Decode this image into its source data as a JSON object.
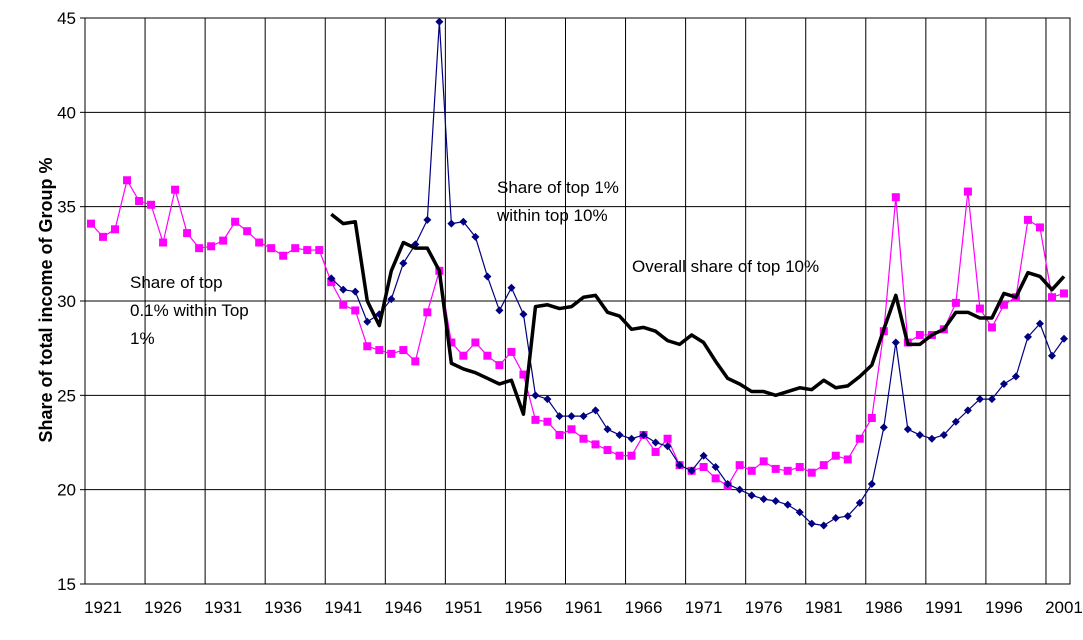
{
  "chart_data": {
    "type": "line",
    "y_label": "Share of total income of Group %",
    "categories": [
      "1921",
      null,
      null,
      null,
      null,
      "1926",
      null,
      null,
      null,
      null,
      "1931",
      null,
      null,
      null,
      null,
      "1936",
      null,
      null,
      null,
      null,
      "1941",
      null,
      null,
      null,
      null,
      "1946",
      null,
      null,
      null,
      null,
      "1951",
      null,
      null,
      null,
      null,
      "1956",
      null,
      null,
      null,
      null,
      "1961",
      null,
      null,
      null,
      null,
      "1966",
      null,
      null,
      null,
      null,
      "1971",
      null,
      null,
      null,
      null,
      "1976",
      null,
      null,
      null,
      null,
      "1981",
      null,
      null,
      null,
      null,
      "1986",
      null,
      null,
      null,
      null,
      "1991",
      null,
      null,
      null,
      null,
      "1996",
      null,
      null,
      null,
      null,
      "2001",
      null
    ],
    "series": [
      {
        "color": "#ff00ff",
        "marker": "square",
        "line_width": 1.2,
        "values": [
          34.1,
          33.4,
          33.8,
          36.4,
          35.3,
          35.1,
          33.1,
          35.9,
          33.6,
          32.8,
          32.9,
          33.2,
          34.2,
          33.7,
          33.1,
          32.8,
          32.4,
          32.8,
          32.7,
          32.7,
          31.0,
          29.8,
          29.5,
          27.6,
          27.4,
          27.2,
          27.4,
          26.8,
          29.4,
          31.6,
          27.8,
          27.1,
          27.8,
          27.1,
          26.6,
          27.3,
          26.1,
          23.7,
          23.6,
          22.9,
          23.2,
          22.7,
          22.4,
          22.1,
          21.8,
          21.8,
          22.9,
          22.0,
          22.7,
          21.3,
          21.0,
          21.2,
          20.6,
          20.2,
          21.3,
          21.0,
          21.5,
          21.1,
          21.0,
          21.2,
          20.9,
          21.3,
          21.8,
          21.6,
          22.7,
          23.8,
          28.4,
          35.5,
          27.8,
          28.2,
          28.2,
          28.5,
          29.9,
          35.8,
          29.6,
          28.6,
          29.8,
          30.2,
          34.3,
          33.9,
          30.2,
          30.4
        ]
      },
      {
        "color": "#000080",
        "marker": "diamond",
        "line_width": 1.2,
        "values": [
          null,
          null,
          null,
          null,
          null,
          null,
          null,
          null,
          null,
          null,
          null,
          null,
          null,
          null,
          null,
          null,
          null,
          null,
          null,
          null,
          31.2,
          30.6,
          30.5,
          28.9,
          29.3,
          30.1,
          32.0,
          33.0,
          34.3,
          44.8,
          34.1,
          34.2,
          33.4,
          31.3,
          29.5,
          30.7,
          29.3,
          25.0,
          24.8,
          23.9,
          23.9,
          23.9,
          24.2,
          23.2,
          22.9,
          22.7,
          22.9,
          22.5,
          22.3,
          21.3,
          21.0,
          21.8,
          21.2,
          20.3,
          20.0,
          19.7,
          19.5,
          19.4,
          19.2,
          18.8,
          18.2,
          18.1,
          18.5,
          18.6,
          19.3,
          20.3,
          23.3,
          27.8,
          23.2,
          22.9,
          22.7,
          22.9,
          23.6,
          24.2,
          24.8,
          24.8,
          25.6,
          26.0,
          28.1,
          28.8,
          27.1,
          28.0
        ]
      },
      {
        "color": "#000000",
        "marker": "none",
        "line_width": 3.5,
        "values": [
          null,
          null,
          null,
          null,
          null,
          null,
          null,
          null,
          null,
          null,
          null,
          null,
          null,
          null,
          null,
          null,
          null,
          null,
          null,
          null,
          34.6,
          34.1,
          34.2,
          30.0,
          28.7,
          31.6,
          33.1,
          32.8,
          32.8,
          31.6,
          26.7,
          26.4,
          26.2,
          25.9,
          25.6,
          25.8,
          24.0,
          29.7,
          29.8,
          29.6,
          29.7,
          30.2,
          30.3,
          29.4,
          29.2,
          28.5,
          28.6,
          28.4,
          27.9,
          27.7,
          28.2,
          27.8,
          26.8,
          25.9,
          25.6,
          25.2,
          25.2,
          25.0,
          25.2,
          25.4,
          25.3,
          25.8,
          25.4,
          25.5,
          26.0,
          26.6,
          28.5,
          30.3,
          27.7,
          27.7,
          28.2,
          28.5,
          29.4,
          29.4,
          29.1,
          29.1,
          30.4,
          30.2,
          31.5,
          31.3,
          30.6,
          31.3
        ]
      }
    ],
    "annotations": [
      {
        "lines": [
          "Share of top 1%",
          "within top 10%"
        ]
      },
      {
        "lines": [
          "Overall share of top 10%"
        ]
      },
      {
        "lines": [
          "Share of top",
          "0.1% within Top",
          "1%"
        ]
      }
    ],
    "ylim": [
      15,
      45
    ],
    "yticks": [
      15,
      20,
      25,
      30,
      35,
      40,
      45
    ],
    "grid": true
  }
}
